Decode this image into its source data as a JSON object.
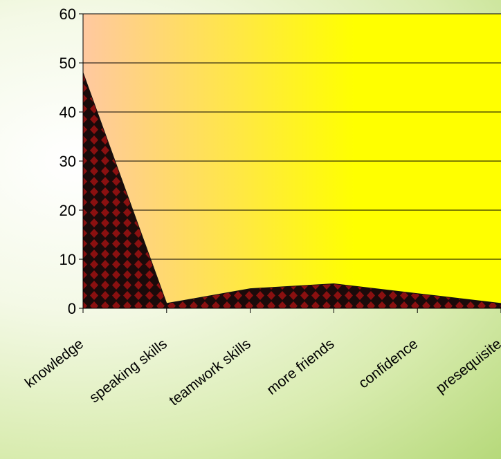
{
  "chart_data": {
    "type": "area",
    "categories": [
      "knowledge",
      "speaking skills",
      "teamwork skills",
      "more friends",
      "confidence",
      "presequisite"
    ],
    "values": [
      48,
      1,
      4,
      5,
      3,
      1
    ],
    "ylim": [
      0,
      60
    ],
    "yticks": [
      0,
      10,
      20,
      30,
      40,
      50,
      60
    ],
    "grid": true,
    "legend": "none",
    "colors": {
      "plot_bg_left": "#ffc8a0",
      "plot_bg_right": "#ffff00",
      "area_fill": "#1a0a0a",
      "area_pattern": "#8b1010",
      "gridline": "#000000"
    }
  }
}
